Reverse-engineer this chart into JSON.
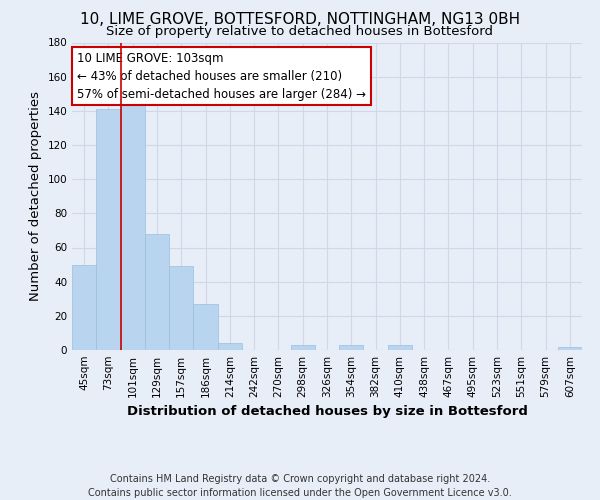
{
  "title": "10, LIME GROVE, BOTTESFORD, NOTTINGHAM, NG13 0BH",
  "subtitle": "Size of property relative to detached houses in Bottesford",
  "xlabel": "Distribution of detached houses by size in Bottesford",
  "ylabel": "Number of detached properties",
  "categories": [
    "45sqm",
    "73sqm",
    "101sqm",
    "129sqm",
    "157sqm",
    "186sqm",
    "214sqm",
    "242sqm",
    "270sqm",
    "298sqm",
    "326sqm",
    "354sqm",
    "382sqm",
    "410sqm",
    "438sqm",
    "467sqm",
    "495sqm",
    "523sqm",
    "551sqm",
    "579sqm",
    "607sqm"
  ],
  "values": [
    50,
    141,
    146,
    68,
    49,
    27,
    4,
    0,
    0,
    3,
    0,
    3,
    0,
    3,
    0,
    0,
    0,
    0,
    0,
    0,
    2
  ],
  "bar_color": "#b8d4ee",
  "bar_edge_color": "#9bbfdf",
  "highlight_line_index": 2,
  "highlight_line_color": "#cc0000",
  "ylim": [
    0,
    180
  ],
  "yticks": [
    0,
    20,
    40,
    60,
    80,
    100,
    120,
    140,
    160,
    180
  ],
  "annotation_line1": "10 LIME GROVE: 103sqm",
  "annotation_line2": "← 43% of detached houses are smaller (210)",
  "annotation_line3": "57% of semi-detached houses are larger (284) →",
  "annotation_box_color": "#ffffff",
  "annotation_box_edge": "#cc0000",
  "footer_line1": "Contains HM Land Registry data © Crown copyright and database right 2024.",
  "footer_line2": "Contains public sector information licensed under the Open Government Licence v3.0.",
  "background_color": "#e8eef8",
  "grid_color": "#d0d8e8",
  "title_fontsize": 11,
  "subtitle_fontsize": 9.5,
  "axis_label_fontsize": 9.5,
  "tick_fontsize": 7.5,
  "annotation_fontsize": 8.5,
  "footer_fontsize": 7
}
